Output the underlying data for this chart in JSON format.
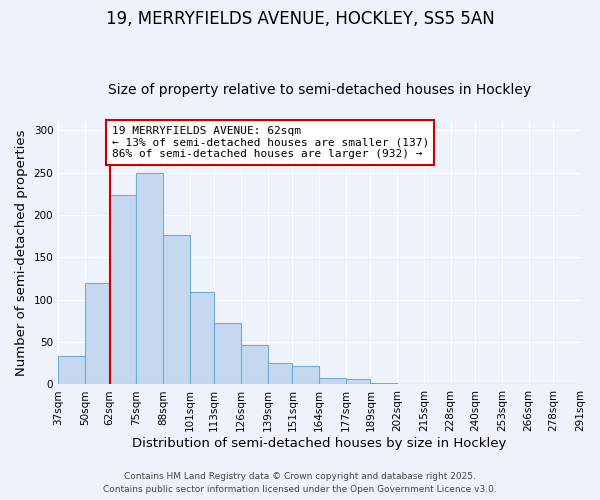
{
  "title": "19, MERRYFIELDS AVENUE, HOCKLEY, SS5 5AN",
  "subtitle": "Size of property relative to semi-detached houses in Hockley",
  "xlabel": "Distribution of semi-detached houses by size in Hockley",
  "ylabel": "Number of semi-detached properties",
  "bins": [
    37,
    50,
    62,
    75,
    88,
    101,
    113,
    126,
    139,
    151,
    164,
    177,
    189,
    202,
    215,
    228,
    240,
    253,
    266,
    278,
    291
  ],
  "counts": [
    33,
    120,
    224,
    250,
    176,
    109,
    73,
    46,
    25,
    22,
    8,
    6,
    2,
    1,
    1,
    0,
    0,
    0,
    0,
    1
  ],
  "bar_color": "#c5d8f0",
  "bar_edge_color": "#6baed6",
  "property_bin_index": 2,
  "vline_color": "#cc0000",
  "annotation_text": "19 MERRYFIELDS AVENUE: 62sqm\n← 13% of semi-detached houses are smaller (137)\n86% of semi-detached houses are larger (932) →",
  "annotation_box_facecolor": "#ffffff",
  "annotation_box_edgecolor": "#cc0000",
  "ylim": [
    0,
    310
  ],
  "yticks": [
    0,
    50,
    100,
    150,
    200,
    250,
    300
  ],
  "background_color": "#eef2fb",
  "grid_color": "#ffffff",
  "footer_line1": "Contains HM Land Registry data © Crown copyright and database right 2025.",
  "footer_line2": "Contains public sector information licensed under the Open Government Licence v3.0.",
  "title_fontsize": 12,
  "subtitle_fontsize": 10,
  "tick_label_fontsize": 7.5,
  "axis_label_fontsize": 9.5,
  "footer_fontsize": 6.5
}
